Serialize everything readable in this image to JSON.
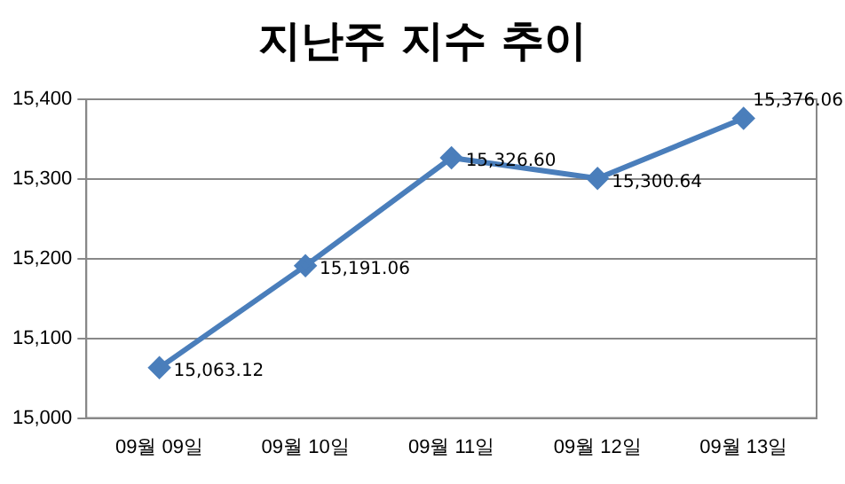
{
  "chart_data": {
    "type": "line",
    "title": "지난주 지수 추이",
    "categories": [
      "09월 09일",
      "09월 10일",
      "09월 11일",
      "09월 12일",
      "09월 13일"
    ],
    "series": [
      {
        "color": "#4a7ebb",
        "values": [
          15063.12,
          15191.06,
          15326.6,
          15300.64,
          15376.06
        ],
        "value_labels": [
          "15,063.12",
          "15,191.06",
          "15,326.60",
          "15,300.64",
          "15,376.06"
        ]
      }
    ],
    "ylim": [
      15000,
      15400
    ],
    "yticks": [
      {
        "value": 15000,
        "label": "15,000"
      },
      {
        "value": 15100,
        "label": "15,100"
      },
      {
        "value": 15200,
        "label": "15,200"
      },
      {
        "value": 15300,
        "label": "15,300"
      },
      {
        "value": 15400,
        "label": "15,400"
      }
    ],
    "grid": "y",
    "legend": false,
    "marker": "diamond",
    "line_style": "solid"
  }
}
